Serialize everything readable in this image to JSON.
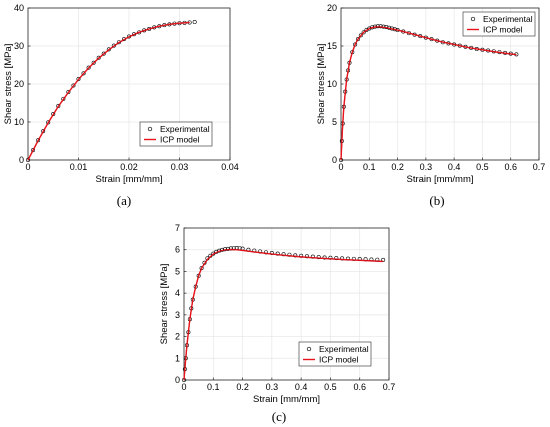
{
  "figure": {
    "panel_labels": [
      "(a)",
      "(b)",
      "(c)"
    ]
  },
  "chart_data": [
    {
      "type": "scatter",
      "xlabel": "Strain [mm/mm]",
      "ylabel": "Shear stress [MPa]",
      "xlim": [
        0,
        0.04
      ],
      "ylim": [
        0,
        40
      ],
      "xticks": [
        0,
        0.01,
        0.02,
        0.03,
        0.04
      ],
      "xtick_labels": [
        "0",
        "0.01",
        "0.02",
        "0.03",
        "0.04"
      ],
      "yticks": [
        0,
        10,
        20,
        30,
        40
      ],
      "ytick_labels": [
        "0",
        "10",
        "20",
        "30",
        "40"
      ],
      "grid": true,
      "legend_position": "lower-right",
      "series": [
        {
          "name": "Experimental",
          "kind": "markers",
          "color": "#000000",
          "x": [
            0,
            0.001,
            0.002,
            0.003,
            0.004,
            0.005,
            0.006,
            0.007,
            0.008,
            0.009,
            0.01,
            0.011,
            0.012,
            0.013,
            0.014,
            0.015,
            0.016,
            0.017,
            0.018,
            0.019,
            0.02,
            0.021,
            0.022,
            0.023,
            0.024,
            0.025,
            0.026,
            0.027,
            0.028,
            0.029,
            0.03,
            0.031,
            0.032,
            0.033
          ],
          "y": [
            0,
            2.6,
            5.2,
            7.6,
            9.9,
            12.1,
            14.2,
            16.1,
            17.9,
            19.6,
            21.3,
            22.8,
            24.3,
            25.6,
            26.9,
            28.0,
            29.1,
            30.1,
            31.0,
            31.8,
            32.5,
            33.1,
            33.6,
            34.1,
            34.5,
            34.9,
            35.2,
            35.5,
            35.7,
            35.9,
            36.0,
            36.1,
            36.2,
            36.3
          ]
        },
        {
          "name": "ICP model",
          "kind": "line",
          "color": "#e8141c",
          "x": [
            0,
            0.002,
            0.004,
            0.006,
            0.008,
            0.01,
            0.012,
            0.014,
            0.016,
            0.018,
            0.02,
            0.022,
            0.024,
            0.026,
            0.028,
            0.03,
            0.032
          ],
          "y": [
            0,
            5.1,
            9.8,
            14.1,
            17.8,
            21.2,
            24.2,
            26.8,
            29.0,
            30.9,
            32.4,
            33.6,
            34.5,
            35.2,
            35.7,
            36.0,
            36.2
          ]
        }
      ]
    },
    {
      "type": "scatter",
      "xlabel": "Strain [mm/mm]",
      "ylabel": "Shear stress [MPa]",
      "xlim": [
        0,
        0.7
      ],
      "ylim": [
        0,
        20
      ],
      "xticks": [
        0,
        0.1,
        0.2,
        0.3,
        0.4,
        0.5,
        0.6,
        0.7
      ],
      "xtick_labels": [
        "0",
        "0.1",
        "0.2",
        "0.3",
        "0.4",
        "0.5",
        "0.6",
        "0.7"
      ],
      "yticks": [
        0,
        5,
        10,
        15,
        20
      ],
      "ytick_labels": [
        "0",
        "5",
        "10",
        "15",
        "20"
      ],
      "grid": true,
      "legend_position": "top-right",
      "series": [
        {
          "name": "Experimental",
          "kind": "markers",
          "color": "#000000",
          "x": [
            0,
            0.003,
            0.006,
            0.01,
            0.015,
            0.02,
            0.025,
            0.03,
            0.04,
            0.05,
            0.06,
            0.07,
            0.08,
            0.09,
            0.1,
            0.11,
            0.12,
            0.13,
            0.14,
            0.15,
            0.16,
            0.17,
            0.18,
            0.19,
            0.2,
            0.22,
            0.24,
            0.26,
            0.28,
            0.3,
            0.32,
            0.34,
            0.36,
            0.38,
            0.4,
            0.42,
            0.44,
            0.46,
            0.48,
            0.5,
            0.52,
            0.54,
            0.56,
            0.58,
            0.6,
            0.62
          ],
          "y": [
            0,
            2.5,
            4.8,
            7.0,
            9.0,
            10.6,
            11.8,
            12.8,
            14.2,
            15.2,
            15.9,
            16.4,
            16.8,
            17.1,
            17.3,
            17.45,
            17.55,
            17.6,
            17.6,
            17.55,
            17.5,
            17.4,
            17.3,
            17.2,
            17.1,
            16.9,
            16.7,
            16.5,
            16.3,
            16.1,
            15.9,
            15.7,
            15.5,
            15.35,
            15.2,
            15.05,
            14.9,
            14.75,
            14.6,
            14.5,
            14.4,
            14.3,
            14.2,
            14.1,
            14.0,
            13.9
          ]
        },
        {
          "name": "ICP model",
          "kind": "line",
          "color": "#e8141c",
          "x": [
            0,
            0.005,
            0.01,
            0.02,
            0.03,
            0.04,
            0.05,
            0.06,
            0.08,
            0.1,
            0.12,
            0.14,
            0.16,
            0.18,
            0.2,
            0.25,
            0.3,
            0.35,
            0.4,
            0.45,
            0.5,
            0.55,
            0.6,
            0.62
          ],
          "y": [
            0,
            4.0,
            7.0,
            10.6,
            12.8,
            14.2,
            15.2,
            15.9,
            16.8,
            17.3,
            17.5,
            17.5,
            17.4,
            17.25,
            17.1,
            16.6,
            16.1,
            15.6,
            15.2,
            14.8,
            14.5,
            14.2,
            13.95,
            13.85
          ]
        }
      ]
    },
    {
      "type": "scatter",
      "xlabel": "Strain [mm/mm]",
      "ylabel": "Shear stress [MPa]",
      "xlim": [
        0,
        0.7
      ],
      "ylim": [
        0,
        7
      ],
      "xticks": [
        0,
        0.1,
        0.2,
        0.3,
        0.4,
        0.5,
        0.6,
        0.7
      ],
      "xtick_labels": [
        "0",
        "0.1",
        "0.2",
        "0.3",
        "0.4",
        "0.5",
        "0.6",
        "0.7"
      ],
      "yticks": [
        0,
        1,
        2,
        3,
        4,
        5,
        6,
        7
      ],
      "ytick_labels": [
        "0",
        "1",
        "2",
        "3",
        "4",
        "5",
        "6",
        "7"
      ],
      "grid": true,
      "legend_position": "lower-right",
      "series": [
        {
          "name": "Experimental",
          "kind": "markers",
          "color": "#000000",
          "x": [
            0,
            0.003,
            0.006,
            0.01,
            0.015,
            0.02,
            0.025,
            0.03,
            0.04,
            0.05,
            0.06,
            0.07,
            0.08,
            0.09,
            0.1,
            0.11,
            0.12,
            0.13,
            0.14,
            0.15,
            0.16,
            0.17,
            0.18,
            0.19,
            0.2,
            0.22,
            0.24,
            0.26,
            0.28,
            0.3,
            0.32,
            0.34,
            0.36,
            0.38,
            0.4,
            0.42,
            0.44,
            0.46,
            0.48,
            0.5,
            0.52,
            0.54,
            0.56,
            0.58,
            0.6,
            0.62,
            0.64,
            0.66,
            0.68
          ],
          "y": [
            0,
            0.5,
            1.0,
            1.6,
            2.2,
            2.8,
            3.3,
            3.7,
            4.3,
            4.8,
            5.15,
            5.4,
            5.6,
            5.72,
            5.82,
            5.9,
            5.95,
            5.99,
            6.02,
            6.04,
            6.06,
            6.07,
            6.08,
            6.07,
            6.05,
            6.0,
            5.96,
            5.92,
            5.88,
            5.85,
            5.82,
            5.79,
            5.77,
            5.74,
            5.72,
            5.7,
            5.68,
            5.66,
            5.64,
            5.63,
            5.61,
            5.6,
            5.59,
            5.58,
            5.57,
            5.56,
            5.55,
            5.54,
            5.53
          ]
        },
        {
          "name": "ICP model",
          "kind": "line",
          "color": "#e8141c",
          "x": [
            0,
            0.005,
            0.01,
            0.02,
            0.03,
            0.04,
            0.05,
            0.06,
            0.08,
            0.1,
            0.12,
            0.14,
            0.16,
            0.18,
            0.2,
            0.25,
            0.3,
            0.35,
            0.4,
            0.45,
            0.5,
            0.55,
            0.6,
            0.65,
            0.68
          ],
          "y": [
            0,
            0.85,
            1.6,
            2.8,
            3.7,
            4.3,
            4.8,
            5.15,
            5.55,
            5.8,
            5.93,
            5.99,
            6.01,
            6.0,
            5.97,
            5.88,
            5.8,
            5.73,
            5.67,
            5.62,
            5.58,
            5.54,
            5.51,
            5.48,
            5.46
          ]
        }
      ]
    }
  ]
}
